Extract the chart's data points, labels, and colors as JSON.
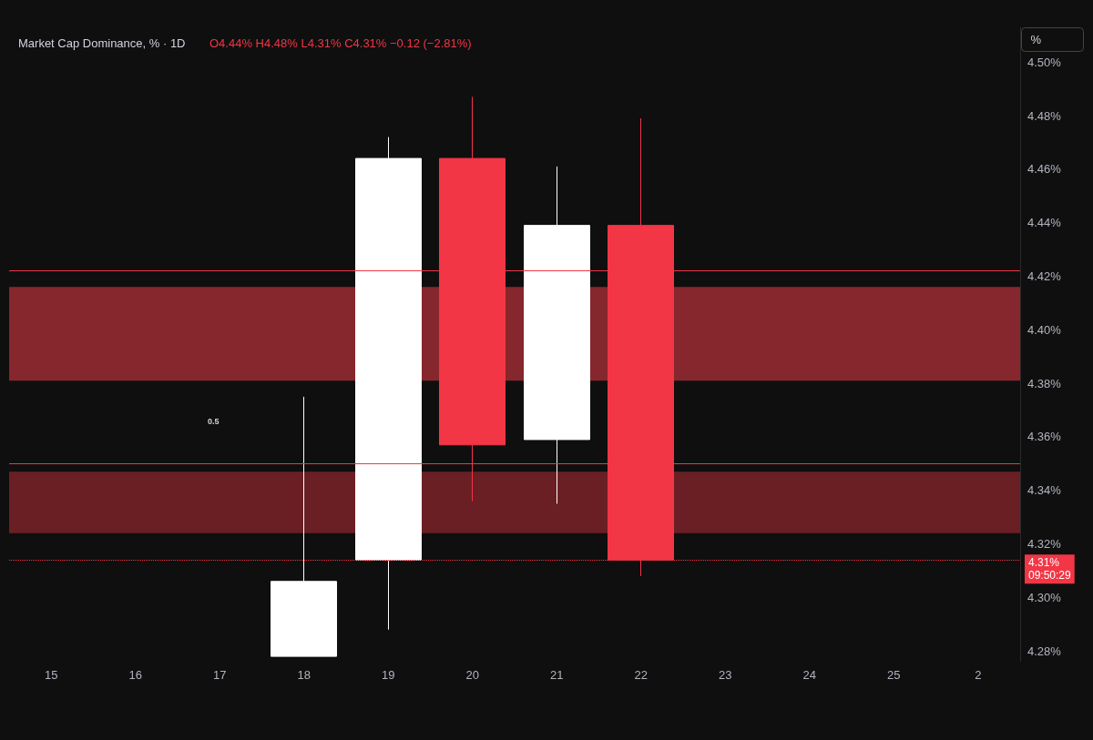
{
  "chart_data": {
    "type": "candlestick",
    "title": "Market Cap Dominance, % · 1D",
    "subtitle": "O4.44% H4.48% L4.31% C4.31% −0.12 (−2.81%)",
    "categories": [
      "15",
      "16",
      "17",
      "18",
      "19",
      "20",
      "21",
      "22",
      "23",
      "24",
      "25",
      "2"
    ],
    "ohlc": [
      null,
      null,
      null,
      [
        4.278,
        4.375,
        4.278,
        4.306
      ],
      [
        4.314,
        4.472,
        4.288,
        4.464
      ],
      [
        4.464,
        4.487,
        4.336,
        4.357
      ],
      [
        4.359,
        4.461,
        4.335,
        4.439
      ],
      [
        4.439,
        4.479,
        4.308,
        4.314
      ],
      null,
      null,
      null,
      null
    ],
    "colors": [
      null,
      null,
      null,
      "#ffffff",
      "#ffffff",
      "#f23645",
      "#ffffff",
      "#f23645",
      null,
      null,
      null,
      null
    ],
    "ylim": [
      4.276,
      4.513
    ],
    "yticks": [
      {
        "value": 4.28,
        "label": "4.28%"
      },
      {
        "value": 4.3,
        "label": "4.30%"
      },
      {
        "value": 4.32,
        "label": "4.32%"
      },
      {
        "value": 4.34,
        "label": "4.34%"
      },
      {
        "value": 4.36,
        "label": "4.36%"
      },
      {
        "value": 4.38,
        "label": "4.38%"
      },
      {
        "value": 4.4,
        "label": "4.40%"
      },
      {
        "value": 4.42,
        "label": "4.42%"
      },
      {
        "value": 4.44,
        "label": "4.44%"
      },
      {
        "value": 4.46,
        "label": "4.46%"
      },
      {
        "value": 4.48,
        "label": "4.48%"
      },
      {
        "value": 4.5,
        "label": "4.50%"
      }
    ],
    "ref_lines": [
      {
        "axis": "y",
        "value": 4.422,
        "color": "#f23645",
        "line_style": "solid"
      },
      {
        "axis": "y",
        "value": 4.35,
        "color": "#f23645",
        "line_style": "solid"
      },
      {
        "axis": "y",
        "value": 4.314,
        "label": "4.31%\n09:50:29",
        "color": "#f23645",
        "line_style": "dotted"
      }
    ],
    "bands": [
      {
        "axis": "y",
        "from": 4.381,
        "to": 4.416,
        "color": "#9b2a33"
      },
      {
        "axis": "y",
        "from": 4.324,
        "to": 4.347,
        "color": "#7a2229"
      }
    ],
    "annotations": [
      "0.5",
      "%"
    ],
    "grid": false
  }
}
